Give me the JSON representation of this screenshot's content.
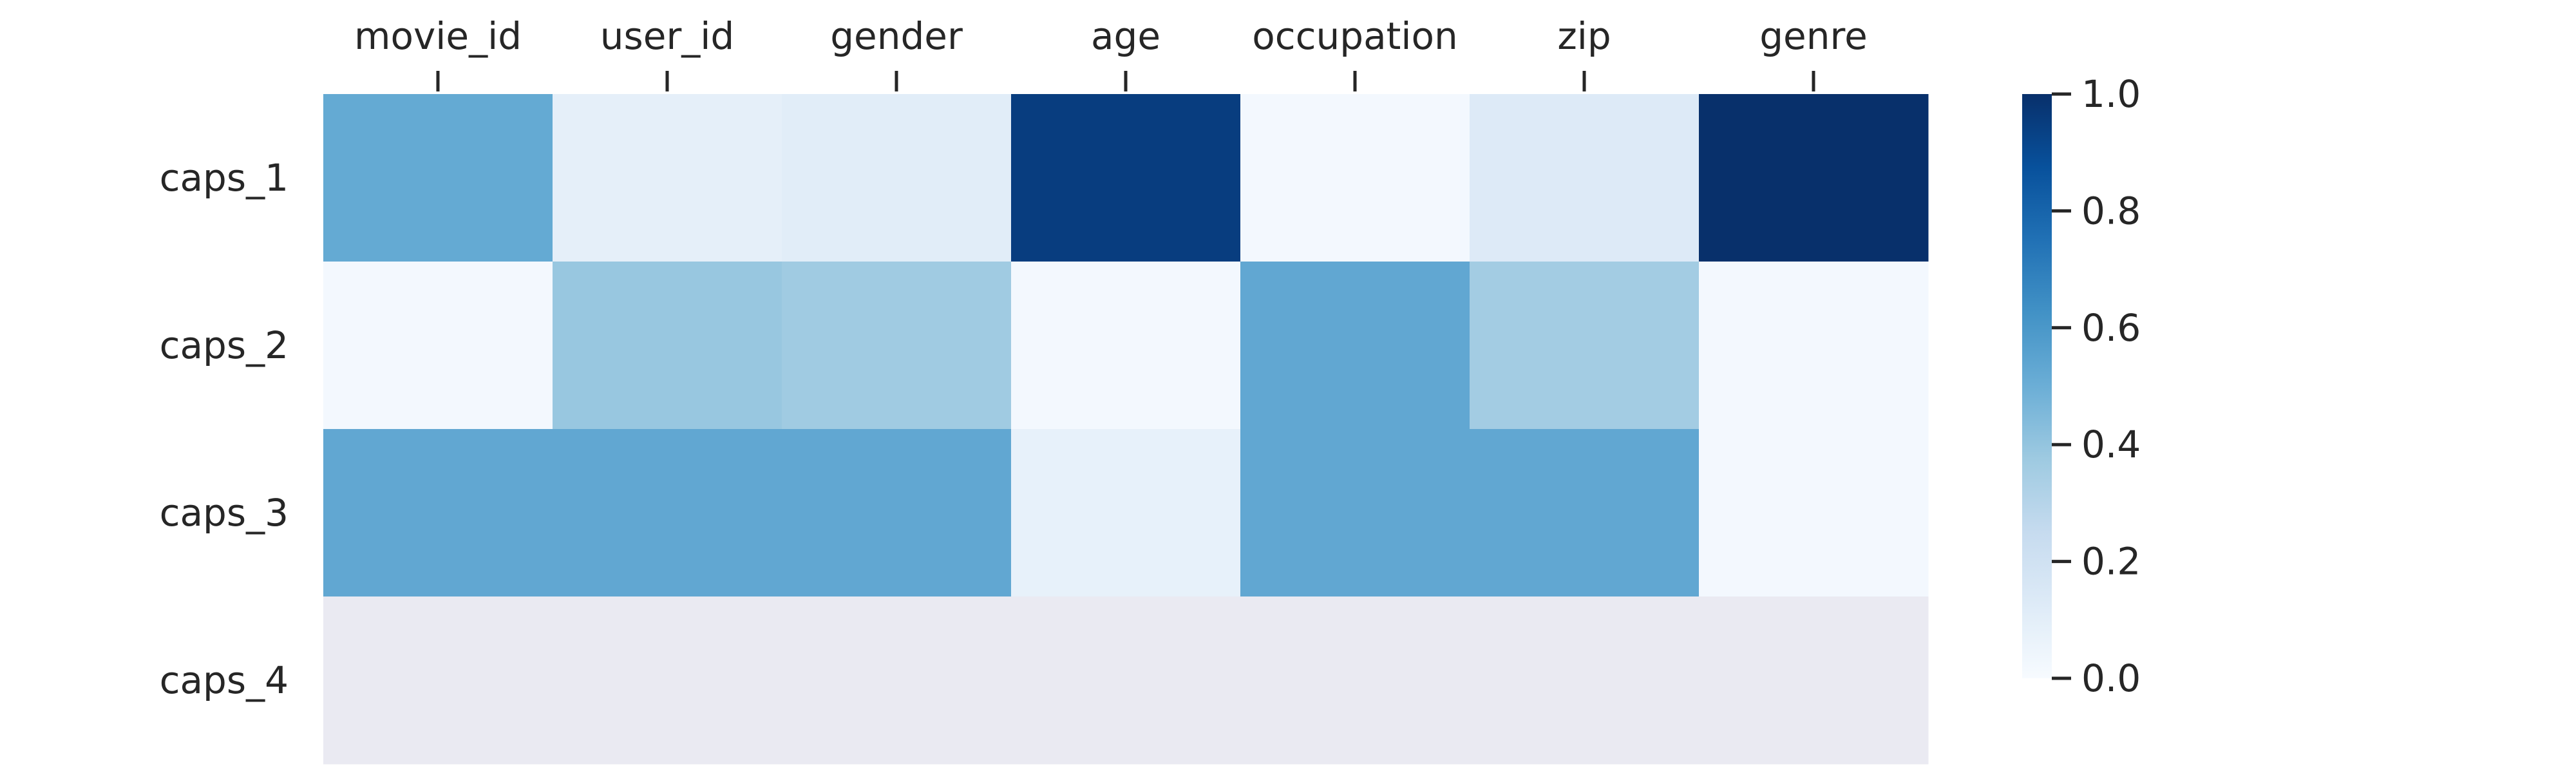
{
  "chart_data": {
    "type": "heatmap",
    "x_categories": [
      "movie_id",
      "user_id",
      "gender",
      "age",
      "occupation",
      "zip",
      "genre"
    ],
    "y_categories": [
      "caps_1",
      "caps_2",
      "caps_3",
      "caps_4"
    ],
    "values": [
      [
        0.52,
        0.09,
        0.11,
        0.95,
        0.02,
        0.13,
        1.0
      ],
      [
        0.02,
        0.39,
        0.37,
        0.02,
        0.53,
        0.36,
        0.02
      ],
      [
        0.53,
        0.53,
        0.53,
        0.08,
        0.53,
        0.53,
        0.02
      ],
      [
        null,
        null,
        null,
        null,
        null,
        null,
        null
      ]
    ],
    "colormap": "Blues",
    "missing_color": "#eaeaf2",
    "colorbar": {
      "range": [
        0.0,
        1.0
      ],
      "ticks": [
        "0.0",
        "0.2",
        "0.4",
        "0.6",
        "0.8",
        "1.0"
      ]
    },
    "x_axis_position": "top",
    "grid": false
  }
}
